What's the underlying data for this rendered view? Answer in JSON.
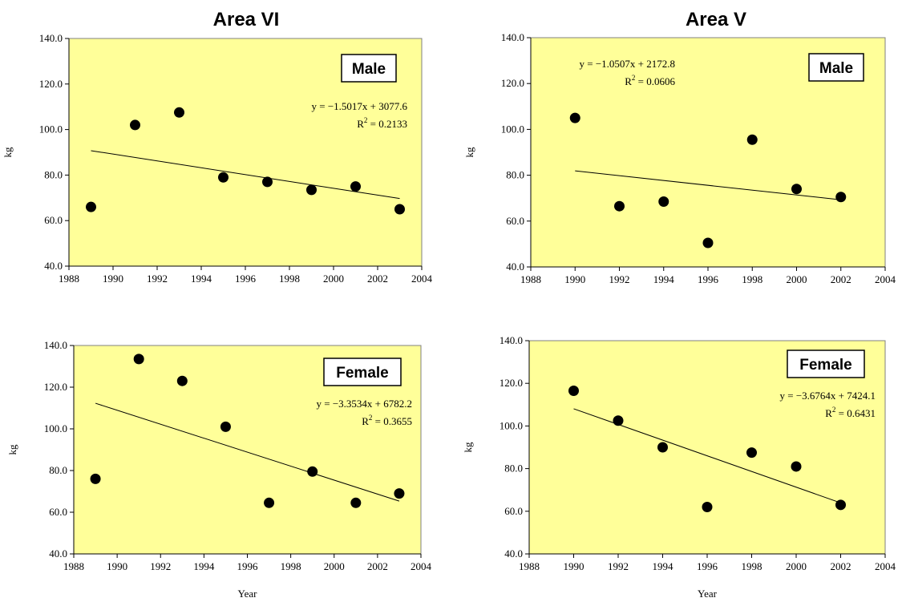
{
  "chart_data": [
    {
      "type": "scatter",
      "title": "Area VI",
      "sex_label": "Male",
      "xlabel": "",
      "ylabel": "kg",
      "xlim": [
        1988,
        2004
      ],
      "ylim": [
        40,
        140
      ],
      "x_ticks": [
        "1988",
        "1990",
        "1992",
        "1994",
        "1996",
        "1998",
        "2000",
        "2002",
        "2004"
      ],
      "y_ticks": [
        "40.0",
        "60.0",
        "80.0",
        "100.0",
        "120.0",
        "140.0"
      ],
      "x": [
        1989,
        1991,
        1993,
        1995,
        1997,
        1999,
        2001,
        2003
      ],
      "y": [
        66.0,
        102.0,
        107.5,
        79.0,
        77.0,
        73.5,
        75.0,
        65.0
      ],
      "trendline": {
        "slope": -1.5017,
        "intercept": 3077.6,
        "x_range": [
          1989,
          2003
        ]
      },
      "equation": "y = −1.5017x + 3077.6",
      "r2_label": "R",
      "r2_sup": "2",
      "r2_value": " = 0.2133"
    },
    {
      "type": "scatter",
      "title": "Area V",
      "sex_label": "Male",
      "xlabel": "",
      "ylabel": "kg",
      "xlim": [
        1988,
        2004
      ],
      "ylim": [
        40,
        140
      ],
      "x_ticks": [
        "1988",
        "1990",
        "1992",
        "1994",
        "1996",
        "1998",
        "2000",
        "2002",
        "2004"
      ],
      "y_ticks": [
        "40.0",
        "60.0",
        "80.0",
        "100.0",
        "120.0",
        "140.0"
      ],
      "x": [
        1990,
        1992,
        1994,
        1996,
        1998,
        2000,
        2002
      ],
      "y": [
        105.0,
        66.5,
        68.5,
        50.5,
        95.5,
        74.0,
        70.5
      ],
      "trendline": {
        "slope": -1.0507,
        "intercept": 2172.8,
        "x_range": [
          1990,
          2002
        ]
      },
      "equation": "y = −1.0507x + 2172.8",
      "r2_label": "R",
      "r2_sup": "2",
      "r2_value": " = 0.0606"
    },
    {
      "type": "scatter",
      "title": "",
      "sex_label": "Female",
      "xlabel": "Year",
      "ylabel": "kg",
      "xlim": [
        1988,
        2004
      ],
      "ylim": [
        40,
        140
      ],
      "x_ticks": [
        "1988",
        "1990",
        "1992",
        "1994",
        "1996",
        "1998",
        "2000",
        "2002",
        "2004"
      ],
      "y_ticks": [
        "40.0",
        "60.0",
        "80.0",
        "100.0",
        "120.0",
        "140.0"
      ],
      "x": [
        1989,
        1991,
        1993,
        1995,
        1997,
        1999,
        2001,
        2003
      ],
      "y": [
        76.0,
        133.5,
        123.0,
        101.0,
        64.5,
        79.5,
        64.5,
        69.0
      ],
      "trendline": {
        "slope": -3.3534,
        "intercept": 6782.2,
        "x_range": [
          1989,
          2003
        ]
      },
      "equation": "y = −3.3534x + 6782.2",
      "r2_label": "R",
      "r2_sup": "2",
      "r2_value": " = 0.3655"
    },
    {
      "type": "scatter",
      "title": "",
      "sex_label": "Female",
      "xlabel": "Year",
      "ylabel": "kg",
      "xlim": [
        1988,
        2004
      ],
      "ylim": [
        40,
        140
      ],
      "x_ticks": [
        "1988",
        "1990",
        "1992",
        "1994",
        "1996",
        "1998",
        "2000",
        "2002",
        "2004"
      ],
      "y_ticks": [
        "40.0",
        "60.0",
        "80.0",
        "100.0",
        "120.0",
        "140.0"
      ],
      "x": [
        1990,
        1992,
        1994,
        1996,
        1998,
        2000,
        2002
      ],
      "y": [
        116.5,
        102.5,
        90.0,
        62.0,
        87.5,
        81.0,
        63.0
      ],
      "trendline": {
        "slope": -3.6764,
        "intercept": 7424.1,
        "x_range": [
          1990,
          2002
        ]
      },
      "equation": "y = −3.6764x + 7424.1",
      "r2_label": "R",
      "r2_sup": "2",
      "r2_value": " = 0.6431"
    }
  ],
  "colors": {
    "plot_background": "#FFFF99",
    "frame": "#808080",
    "marker": "#000000",
    "trendline": "#000000"
  }
}
